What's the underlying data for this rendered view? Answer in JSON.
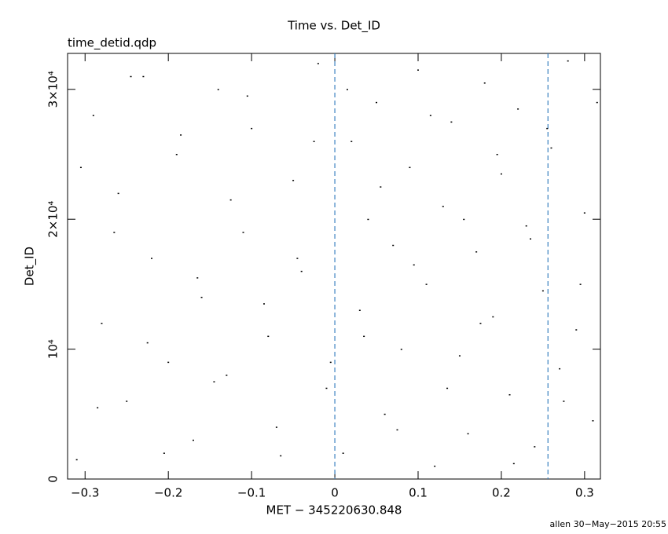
{
  "chart_data": {
    "type": "scatter",
    "title": "Time vs. Det_ID",
    "subtitle": "time_detid.qdp",
    "x_label": "MET − 345220630.848",
    "y_label": "Det_ID",
    "footer": "allen 30−May−2015 20:55",
    "xlim": [
      -0.321,
      0.319
    ],
    "ylim": [
      0,
      32768
    ],
    "xticks": [
      {
        "value": -0.3,
        "label": "−0.3"
      },
      {
        "value": -0.2,
        "label": "−0.2"
      },
      {
        "value": -0.1,
        "label": "−0.1"
      },
      0,
      0.1,
      0.2,
      0.3
    ],
    "yticks": [
      0,
      {
        "value": 10000,
        "label": "10⁴"
      },
      {
        "value": 20000,
        "label": "2×10⁴"
      },
      {
        "value": 30000,
        "label": "3×10⁴"
      }
    ],
    "color": "#000000",
    "vlines": [
      0,
      0.256
    ],
    "vline_color": "#3a80c0",
    "series": [
      {
        "name": "Det_ID",
        "x": [
          -0.31,
          -0.29,
          -0.28,
          -0.26,
          -0.25,
          -0.23,
          -0.22,
          -0.2,
          -0.19,
          -0.17,
          -0.16,
          -0.14,
          -0.13,
          -0.11,
          -0.1,
          -0.08,
          -0.07,
          -0.05,
          -0.04,
          -0.02,
          -0.01,
          0.01,
          0.02,
          0.03,
          0.04,
          0.05,
          0.06,
          0.07,
          0.08,
          0.09,
          0.1,
          0.11,
          0.12,
          0.13,
          0.14,
          0.15,
          0.16,
          0.17,
          0.18,
          0.19,
          0.2,
          0.21,
          0.22,
          0.23,
          0.24,
          0.25,
          0.26,
          0.27,
          0.28,
          0.29,
          0.3,
          0.31,
          -0.305,
          -0.285,
          -0.265,
          -0.245,
          -0.225,
          -0.205,
          -0.185,
          -0.165,
          -0.145,
          -0.125,
          -0.105,
          -0.085,
          -0.065,
          -0.045,
          -0.025,
          -0.005,
          0.015,
          0.035,
          0.055,
          0.075,
          0.095,
          0.115,
          0.135,
          0.155,
          0.175,
          0.195,
          0.215,
          0.235,
          0.255,
          0.275,
          0.295,
          0.315
        ],
        "values": [
          1500,
          28000,
          12000,
          22000,
          6000,
          31000,
          17000,
          9000,
          25000,
          3000,
          14000,
          30000,
          8000,
          19000,
          27000,
          11000,
          4000,
          23000,
          16000,
          32000,
          7000,
          2000,
          26000,
          13000,
          20000,
          29000,
          5000,
          18000,
          10000,
          24000,
          31500,
          15000,
          1000,
          21000,
          27500,
          9500,
          3500,
          17500,
          30500,
          12500,
          23500,
          6500,
          28500,
          19500,
          2500,
          14500,
          25500,
          8500,
          32200,
          11500,
          20500,
          4500,
          24000,
          5500,
          19000,
          31000,
          10500,
          2000,
          26500,
          15500,
          7500,
          21500,
          29500,
          13500,
          1800,
          17000,
          26000,
          9000,
          30000,
          11000,
          22500,
          3800,
          16500,
          28000,
          7000,
          20000,
          12000,
          25000,
          1200,
          18500,
          27000,
          6000,
          15000,
          29000
        ]
      }
    ]
  }
}
